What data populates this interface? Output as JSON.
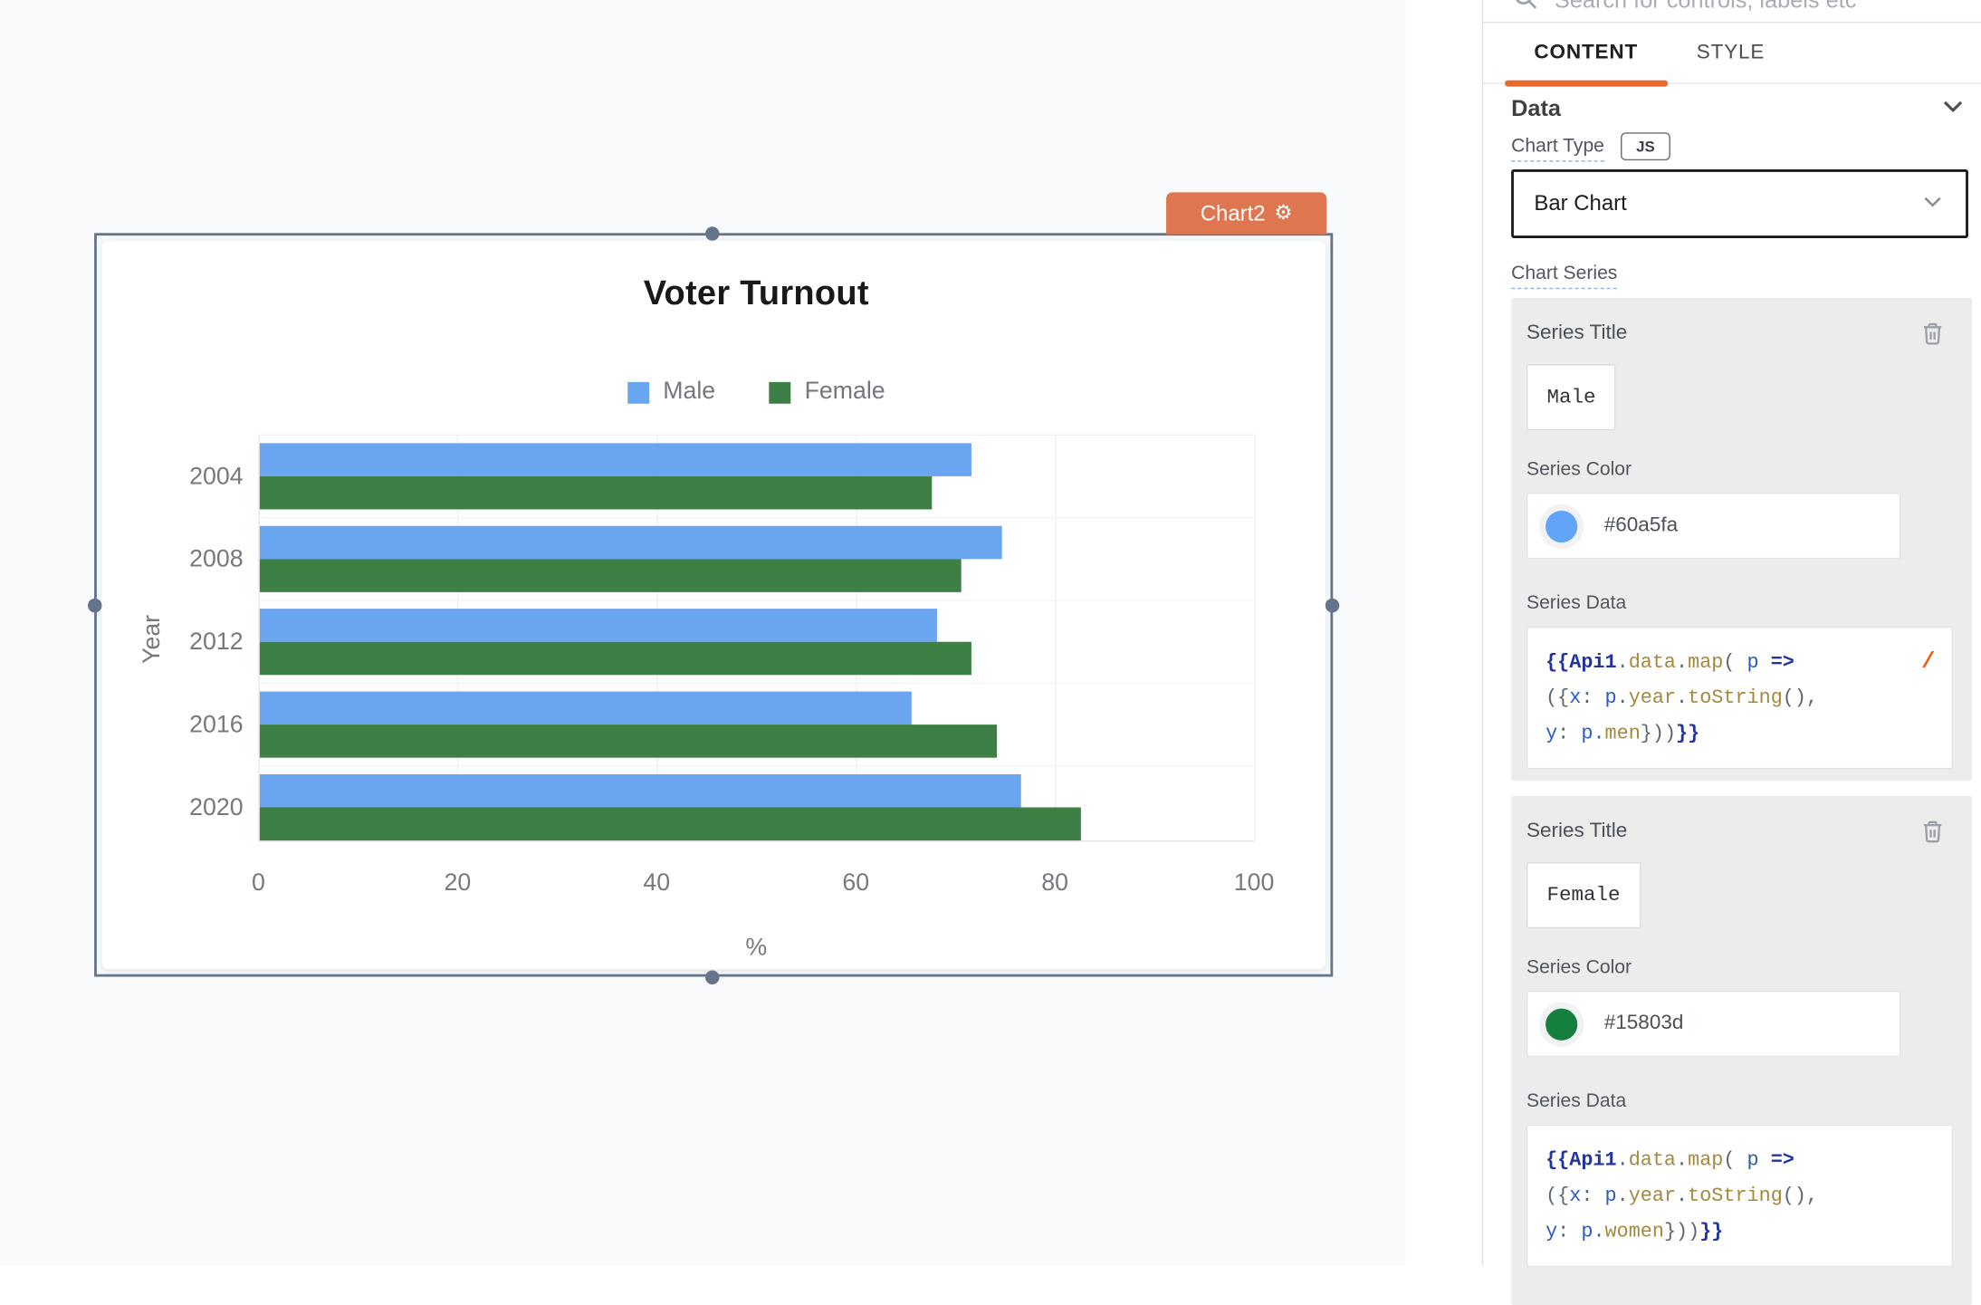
{
  "canvas": {
    "widget_tag": {
      "label": "Chart2"
    },
    "selection_color": "#64748b",
    "background": "#f8fafc"
  },
  "chart_data": {
    "type": "bar",
    "orientation": "horizontal",
    "title": "Voter Turnout",
    "categories": [
      "2004",
      "2008",
      "2012",
      "2016",
      "2020"
    ],
    "series": [
      {
        "name": "Male",
        "color": "#6aa5ef",
        "values": [
          71.5,
          74.5,
          68,
          65.5,
          76.5
        ]
      },
      {
        "name": "Female",
        "color": "#3d7f44",
        "values": [
          67.5,
          70.5,
          71.5,
          74,
          82.5
        ]
      }
    ],
    "xlabel": "%",
    "ylabel": "Year",
    "xlim": [
      0,
      100
    ],
    "xticks": [
      0,
      20,
      40,
      60,
      80,
      100
    ],
    "grid": true,
    "legend_position": "top"
  },
  "panel": {
    "search": {
      "placeholder": "Search for controls, labels etc"
    },
    "tabs": {
      "content": "CONTENT",
      "style": "STYLE",
      "active": "CONTENT"
    },
    "data_section_label": "Data",
    "chart_type": {
      "label": "Chart Type",
      "js_badge": "JS",
      "value": "Bar Chart"
    },
    "chart_series_label": "Chart Series",
    "series": [
      {
        "title_label": "Series Title",
        "title_value": "Male",
        "color_label": "Series Color",
        "color_value": "#60a5fa",
        "data_label": "Series Data",
        "has_slash_hint": true,
        "code_lines": [
          [
            [
              "b",
              "{{"
            ],
            [
              "v",
              "Api1"
            ],
            [
              "p",
              "."
            ],
            [
              "o",
              "data"
            ],
            [
              "p",
              "."
            ],
            [
              "o",
              "map"
            ],
            [
              "p",
              "( "
            ],
            [
              "v2",
              "p"
            ],
            [
              "p",
              " "
            ],
            [
              "b",
              "=>"
            ]
          ],
          [
            [
              "p",
              "({"
            ],
            [
              "v2",
              "x"
            ],
            [
              "p",
              ": "
            ],
            [
              "v2",
              "p"
            ],
            [
              "p",
              "."
            ],
            [
              "o",
              "year"
            ],
            [
              "p",
              "."
            ],
            [
              "o",
              "toString"
            ],
            [
              "p",
              "(),"
            ]
          ],
          [
            [
              "v2",
              "y"
            ],
            [
              "p",
              ": "
            ],
            [
              "v2",
              "p"
            ],
            [
              "p",
              "."
            ],
            [
              "o",
              "men"
            ],
            [
              "p",
              "}))"
            ],
            [
              "b",
              "}}"
            ]
          ]
        ]
      },
      {
        "title_label": "Series Title",
        "title_value": "Female",
        "color_label": "Series Color",
        "color_value": "#15803d",
        "data_label": "Series Data",
        "has_slash_hint": false,
        "code_lines": [
          [
            [
              "b",
              "{{"
            ],
            [
              "v",
              "Api1"
            ],
            [
              "p",
              "."
            ],
            [
              "o",
              "data"
            ],
            [
              "p",
              "."
            ],
            [
              "o",
              "map"
            ],
            [
              "p",
              "( "
            ],
            [
              "v2",
              "p"
            ],
            [
              "p",
              " "
            ],
            [
              "b",
              "=>"
            ]
          ],
          [
            [
              "p",
              "({"
            ],
            [
              "v2",
              "x"
            ],
            [
              "p",
              ": "
            ],
            [
              "v2",
              "p"
            ],
            [
              "p",
              "."
            ],
            [
              "o",
              "year"
            ],
            [
              "p",
              "."
            ],
            [
              "o",
              "toString"
            ],
            [
              "p",
              "(),"
            ]
          ],
          [
            [
              "v2",
              "y"
            ],
            [
              "p",
              ": "
            ],
            [
              "v2",
              "p"
            ],
            [
              "p",
              "."
            ],
            [
              "o",
              "women"
            ],
            [
              "p",
              "}))"
            ],
            [
              "b",
              "}}"
            ]
          ]
        ]
      }
    ]
  },
  "colors": {
    "tag_orange": "#df764f",
    "tab_underline_orange": "#e9692c",
    "slash_hint_orange": "#f2590f"
  }
}
